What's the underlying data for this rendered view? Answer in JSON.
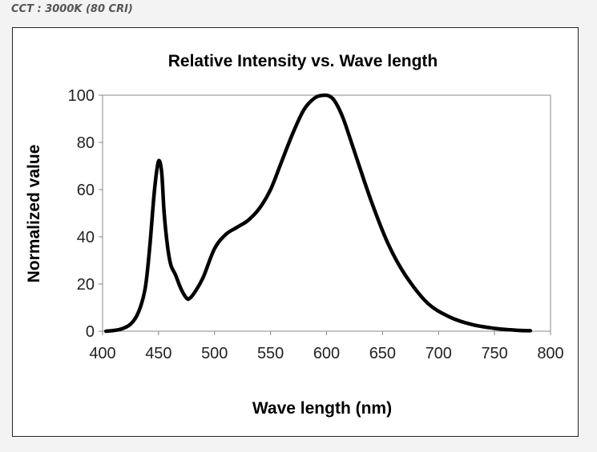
{
  "caption": "CCT : 3000K (80 CRI)",
  "chart_data": {
    "type": "line",
    "title": "Relative Intensity vs. Wave length",
    "xlabel": "Wave length (nm)",
    "ylabel": "Normalized value",
    "xlim": [
      400,
      800
    ],
    "ylim": [
      0,
      100
    ],
    "xticks": [
      400,
      450,
      500,
      550,
      600,
      650,
      700,
      750,
      800
    ],
    "yticks": [
      0,
      20,
      40,
      60,
      80,
      100
    ],
    "xtick_labels": [
      "400",
      "450",
      "500",
      "550",
      "600",
      "650",
      "700",
      "750",
      "800"
    ],
    "ytick_labels": [
      "0",
      "20",
      "40",
      "60",
      "80",
      "100"
    ],
    "grid": false,
    "series": [
      {
        "name": "Relative Intensity",
        "color": "#000000",
        "x": [
          403,
          415,
          425,
          432,
          438,
          442,
          446,
          449,
          451,
          453,
          455,
          458,
          461,
          465,
          470,
          475,
          478,
          483,
          490,
          500,
          510,
          520,
          530,
          540,
          550,
          560,
          570,
          580,
          590,
          598,
          603,
          608,
          615,
          625,
          640,
          655,
          670,
          690,
          710,
          730,
          750,
          770,
          782
        ],
        "y": [
          0,
          0.7,
          3,
          8,
          18,
          35,
          58,
          70,
          72,
          66,
          50,
          36,
          28,
          24,
          18,
          14,
          14,
          17,
          23,
          35,
          41,
          44,
          47,
          52,
          60,
          72,
          84,
          94,
          99,
          100,
          99.5,
          97,
          90,
          76,
          55,
          37,
          24,
          12,
          6,
          2.8,
          1.2,
          0.4,
          0.2
        ]
      }
    ]
  }
}
